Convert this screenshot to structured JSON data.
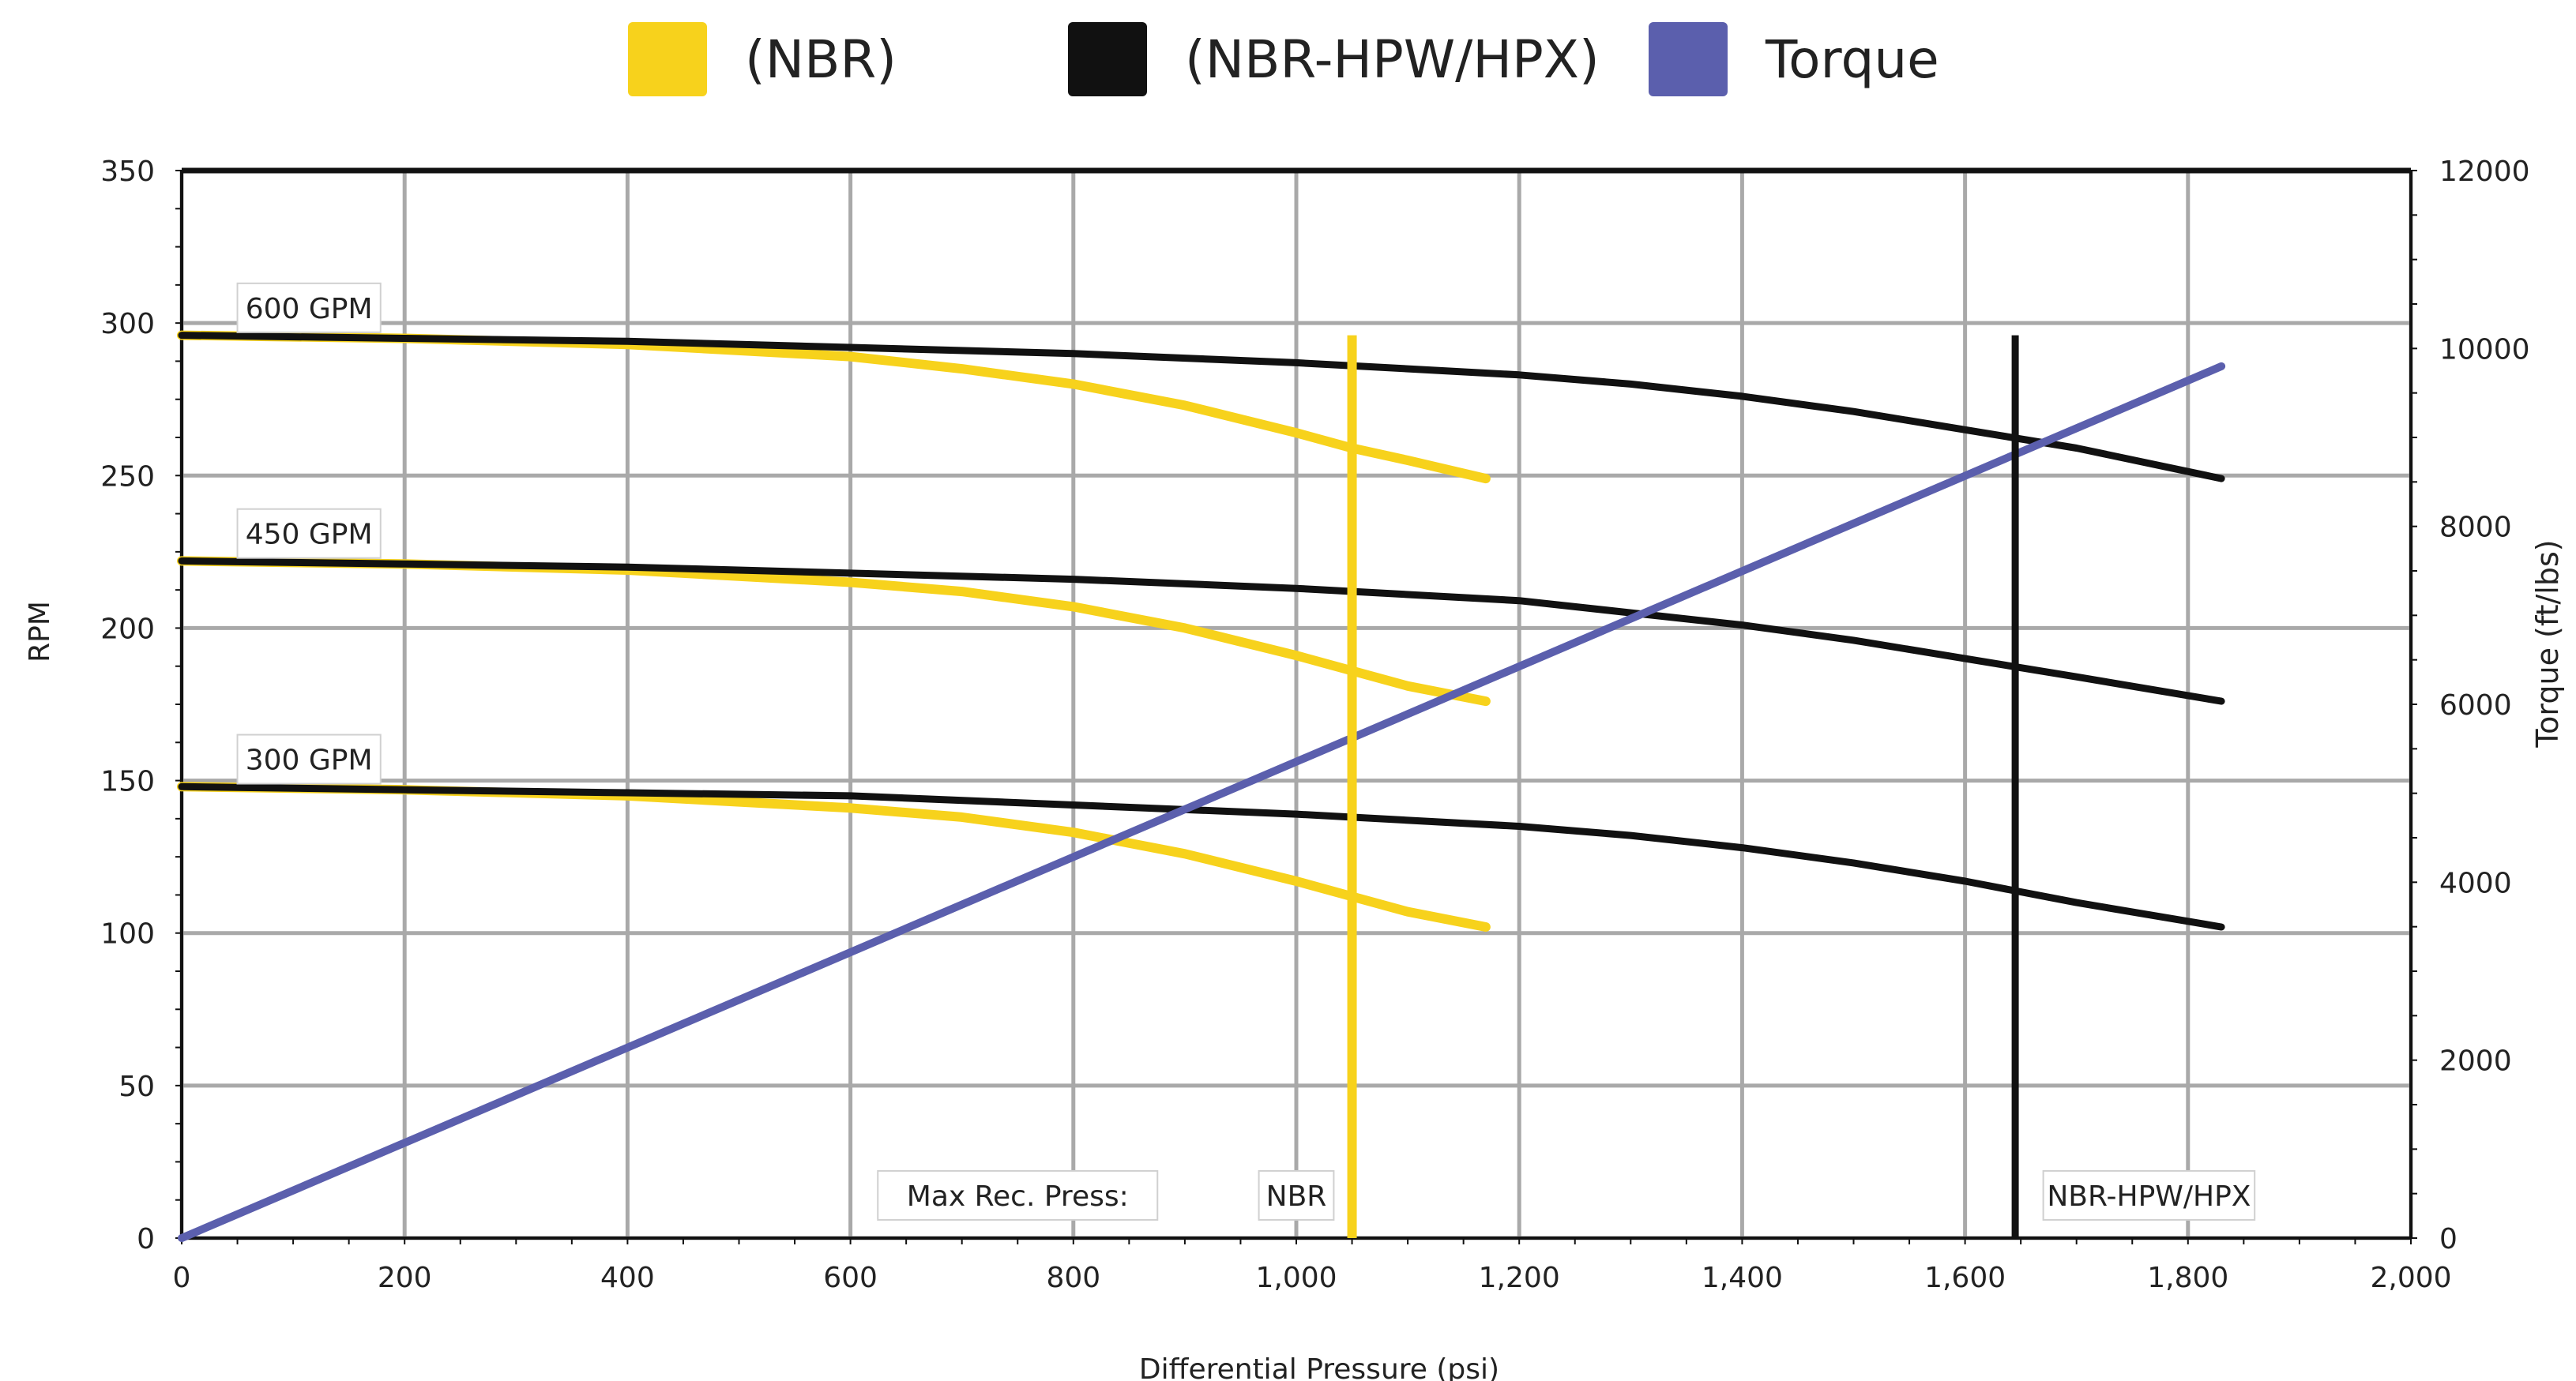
{
  "colors": {
    "nbr": "#f7d21c",
    "nbr_hpw_hpx": "#111111",
    "torque": "#5b5fad",
    "grid": "#a9a9a9",
    "frame": "#111111"
  },
  "legend": [
    {
      "label": "(NBR)",
      "color": "#f7d21c"
    },
    {
      "label": "(NBR-HPW/HPX)",
      "color": "#111111"
    },
    {
      "label": "Torque",
      "color": "#5b5fad"
    }
  ],
  "chart_data": {
    "type": "line",
    "title": "",
    "xlabel": "Differential Pressure (psi)",
    "ylabel": "RPM",
    "y2label": "Torque (ft/lbs)",
    "xlim": [
      0,
      2000
    ],
    "ylim": [
      0,
      350
    ],
    "y2lim": [
      0,
      12000
    ],
    "grid": true,
    "legend_position": "top-center",
    "x_ticks": [
      0,
      200,
      400,
      600,
      800,
      1000,
      1200,
      1400,
      1600,
      1800,
      2000
    ],
    "x_tick_labels": [
      "0",
      "200",
      "400",
      "600",
      "800",
      "1,000",
      "1,200",
      "1,400",
      "1,600",
      "1,800",
      "2,000"
    ],
    "y_ticks": [
      0,
      50,
      100,
      150,
      200,
      250,
      300,
      350
    ],
    "y_tick_labels": [
      "0",
      "50",
      "100",
      "150",
      "200",
      "250",
      "300",
      "350"
    ],
    "y2_ticks": [
      0,
      2000,
      4000,
      6000,
      8000,
      10000,
      12000
    ],
    "y2_tick_labels": [
      "0",
      "2000",
      "4000",
      "6000",
      "8000",
      "10000",
      "12000"
    ],
    "curve_labels": [
      {
        "label": "600 GPM",
        "x": 50,
        "y": 305
      },
      {
        "label": "450 GPM",
        "x": 50,
        "y": 231
      },
      {
        "label": "300 GPM",
        "x": 50,
        "y": 157
      }
    ],
    "series": [
      {
        "name": "(NBR)",
        "flow": "600 GPM",
        "group": "nbr",
        "axis": "left",
        "x": [
          0,
          200,
          400,
          600,
          700,
          800,
          900,
          1000,
          1050,
          1100,
          1170
        ],
        "y": [
          296,
          295,
          293,
          289,
          285,
          280,
          273,
          264,
          259,
          255,
          249
        ]
      },
      {
        "name": "(NBR)",
        "flow": "450 GPM",
        "group": "nbr",
        "axis": "left",
        "x": [
          0,
          200,
          400,
          600,
          700,
          800,
          900,
          1000,
          1050,
          1100,
          1170
        ],
        "y": [
          222,
          221,
          219,
          215,
          212,
          207,
          200,
          191,
          186,
          181,
          176
        ]
      },
      {
        "name": "(NBR)",
        "flow": "300 GPM",
        "group": "nbr",
        "axis": "left",
        "x": [
          0,
          200,
          400,
          600,
          700,
          800,
          900,
          1000,
          1050,
          1100,
          1170
        ],
        "y": [
          148,
          147,
          145,
          141,
          138,
          133,
          126,
          117,
          112,
          107,
          102
        ]
      },
      {
        "name": "(NBR-HPW/HPX)",
        "flow": "600 GPM",
        "group": "hpw",
        "axis": "left",
        "x": [
          0,
          200,
          400,
          600,
          800,
          1000,
          1200,
          1300,
          1400,
          1500,
          1600,
          1700,
          1830
        ],
        "y": [
          296,
          295,
          294,
          292,
          290,
          287,
          283,
          280,
          276,
          271,
          265,
          259,
          249
        ]
      },
      {
        "name": "(NBR-HPW/HPX)",
        "flow": "450 GPM",
        "group": "hpw",
        "axis": "left",
        "x": [
          0,
          200,
          400,
          600,
          800,
          1000,
          1200,
          1300,
          1400,
          1500,
          1600,
          1700,
          1830
        ],
        "y": [
          222,
          221,
          220,
          218,
          216,
          213,
          209,
          205,
          201,
          196,
          190,
          184,
          176
        ]
      },
      {
        "name": "(NBR-HPW/HPX)",
        "flow": "300 GPM",
        "group": "hpw",
        "axis": "left",
        "x": [
          0,
          200,
          400,
          600,
          800,
          1000,
          1200,
          1300,
          1400,
          1500,
          1600,
          1700,
          1830
        ],
        "y": [
          148,
          147,
          146,
          145,
          142,
          139,
          135,
          132,
          128,
          123,
          117,
          110,
          102
        ]
      },
      {
        "name": "Torque",
        "group": "torque",
        "axis": "right",
        "x": [
          0,
          1830
        ],
        "y": [
          0,
          9800
        ]
      }
    ],
    "vlines": [
      {
        "x": 1050,
        "y_top": 296,
        "group": "nbr"
      },
      {
        "x": 1645,
        "y_top": 296,
        "group": "hpw"
      }
    ],
    "annotations": [
      {
        "text": "Max Rec. Press:",
        "x": 750,
        "y": 14
      },
      {
        "text": "NBR",
        "x": 1000,
        "y": 14
      },
      {
        "text": "NBR-HPW/HPX",
        "x": 1765,
        "y": 14
      }
    ]
  }
}
